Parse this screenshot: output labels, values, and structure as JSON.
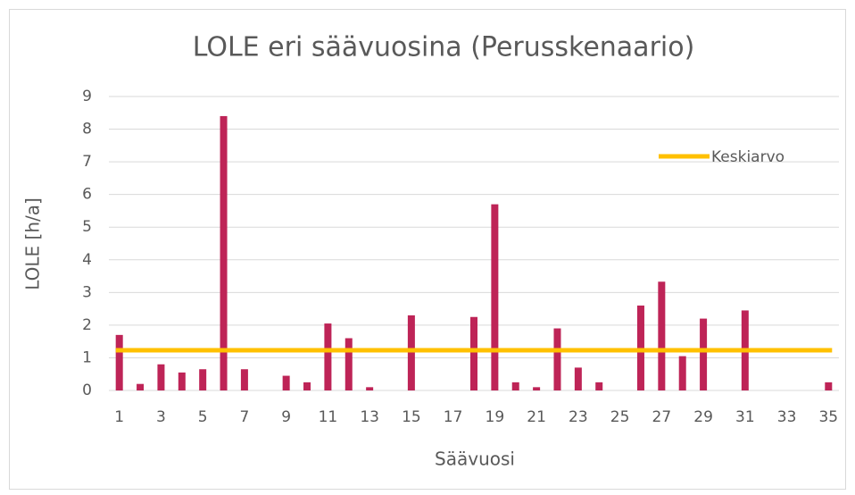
{
  "chart_data": {
    "type": "bar",
    "title": "LOLE eri säävuosina (Perusskenaario)",
    "x_label": "Säävuosi",
    "y_label": "LOLE [h/a]",
    "categories": [
      "1",
      null,
      "3",
      null,
      "5",
      null,
      "7",
      null,
      "9",
      null,
      "11",
      null,
      "13",
      null,
      "15",
      null,
      "17",
      null,
      "19",
      null,
      "21",
      null,
      "23",
      null,
      "25",
      null,
      "27",
      null,
      "29",
      null,
      "31",
      null,
      "33",
      null,
      "35"
    ],
    "values": [
      1.7,
      0.2,
      0.8,
      0.55,
      0.65,
      8.4,
      0.65,
      0,
      0.45,
      0.25,
      2.05,
      1.6,
      0.1,
      0,
      2.3,
      0,
      0,
      2.25,
      5.7,
      0.25,
      0.1,
      1.9,
      0.7,
      0.25,
      0,
      2.6,
      3.33,
      1.05,
      2.2,
      0,
      2.45,
      0,
      0,
      0,
      0.25
    ],
    "color": "#be2457",
    "average": {
      "name": "Keskiarvo",
      "value": 1.23,
      "color": "#ffc000"
    },
    "ylim": [
      0,
      9
    ],
    "yticks": [
      0,
      1,
      2,
      3,
      4,
      5,
      6,
      7,
      8,
      9
    ],
    "grid": true
  }
}
